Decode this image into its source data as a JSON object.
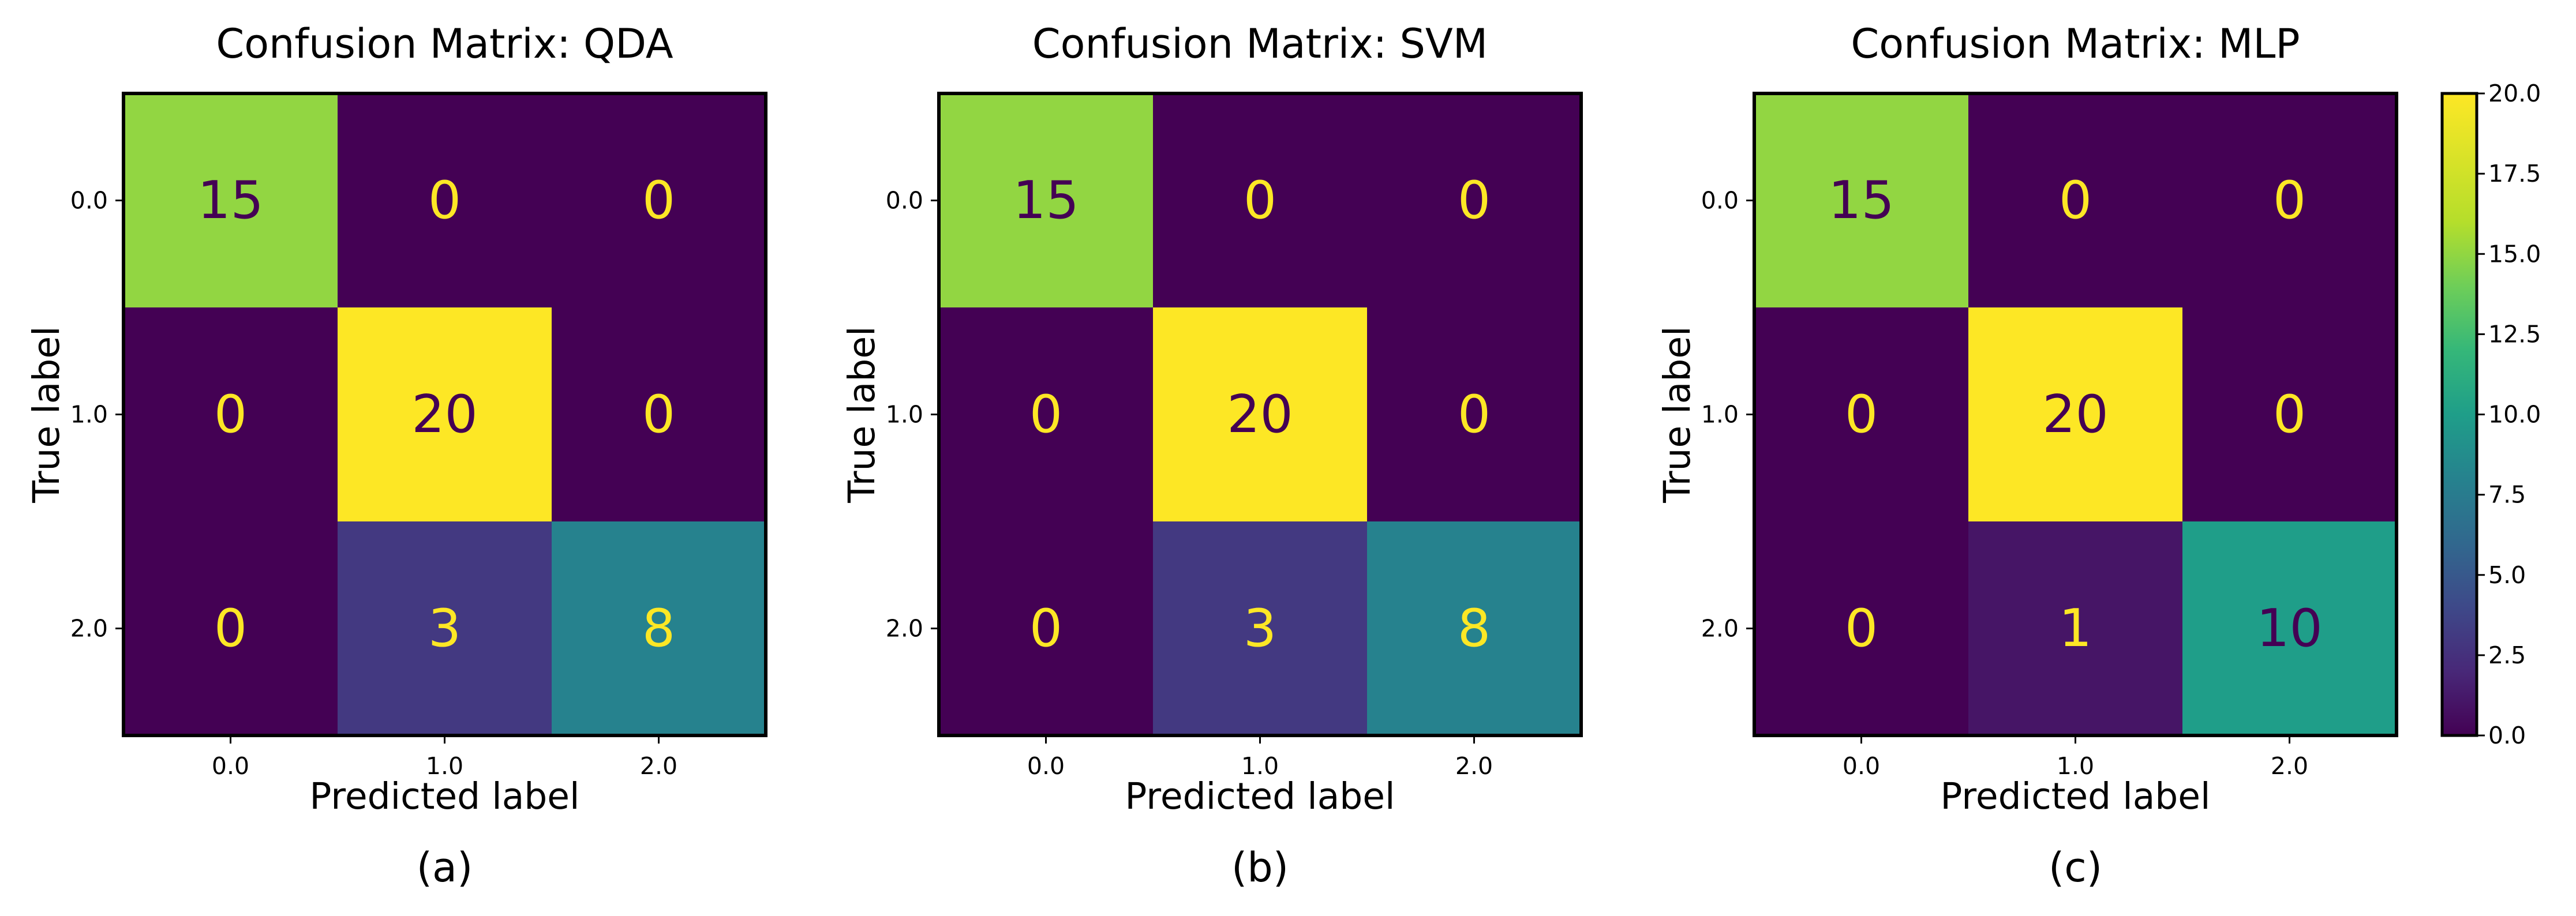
{
  "chart_data": [
    {
      "type": "heatmap",
      "title": "Confusion Matrix: QDA",
      "xlabel": "Predicted label",
      "ylabel": "True label",
      "x_categories": [
        "0.0",
        "1.0",
        "2.0"
      ],
      "y_categories": [
        "0.0",
        "1.0",
        "2.0"
      ],
      "values": [
        [
          15,
          0,
          0
        ],
        [
          0,
          20,
          0
        ],
        [
          0,
          3,
          8
        ]
      ],
      "caption": "(a)"
    },
    {
      "type": "heatmap",
      "title": "Confusion Matrix: SVM",
      "xlabel": "Predicted label",
      "ylabel": "True label",
      "x_categories": [
        "0.0",
        "1.0",
        "2.0"
      ],
      "y_categories": [
        "0.0",
        "1.0",
        "2.0"
      ],
      "values": [
        [
          15,
          0,
          0
        ],
        [
          0,
          20,
          0
        ],
        [
          0,
          3,
          8
        ]
      ],
      "caption": "(b)"
    },
    {
      "type": "heatmap",
      "title": "Confusion Matrix: MLP",
      "xlabel": "Predicted label",
      "ylabel": "True label",
      "x_categories": [
        "0.0",
        "1.0",
        "2.0"
      ],
      "y_categories": [
        "0.0",
        "1.0",
        "2.0"
      ],
      "values": [
        [
          15,
          0,
          0
        ],
        [
          0,
          20,
          0
        ],
        [
          0,
          1,
          10
        ]
      ],
      "caption": "(c)"
    }
  ],
  "colorbar": {
    "colormap": "viridis",
    "range": [
      0,
      20
    ],
    "ticks": [
      "0.0",
      "2.5",
      "5.0",
      "7.5",
      "10.0",
      "12.5",
      "15.0",
      "17.5",
      "20.0"
    ],
    "tick_values": [
      0,
      2.5,
      5,
      7.5,
      10,
      12.5,
      15,
      17.5,
      20
    ]
  },
  "colors": {
    "text_light": "#fde725",
    "text_dark": "#440154"
  }
}
